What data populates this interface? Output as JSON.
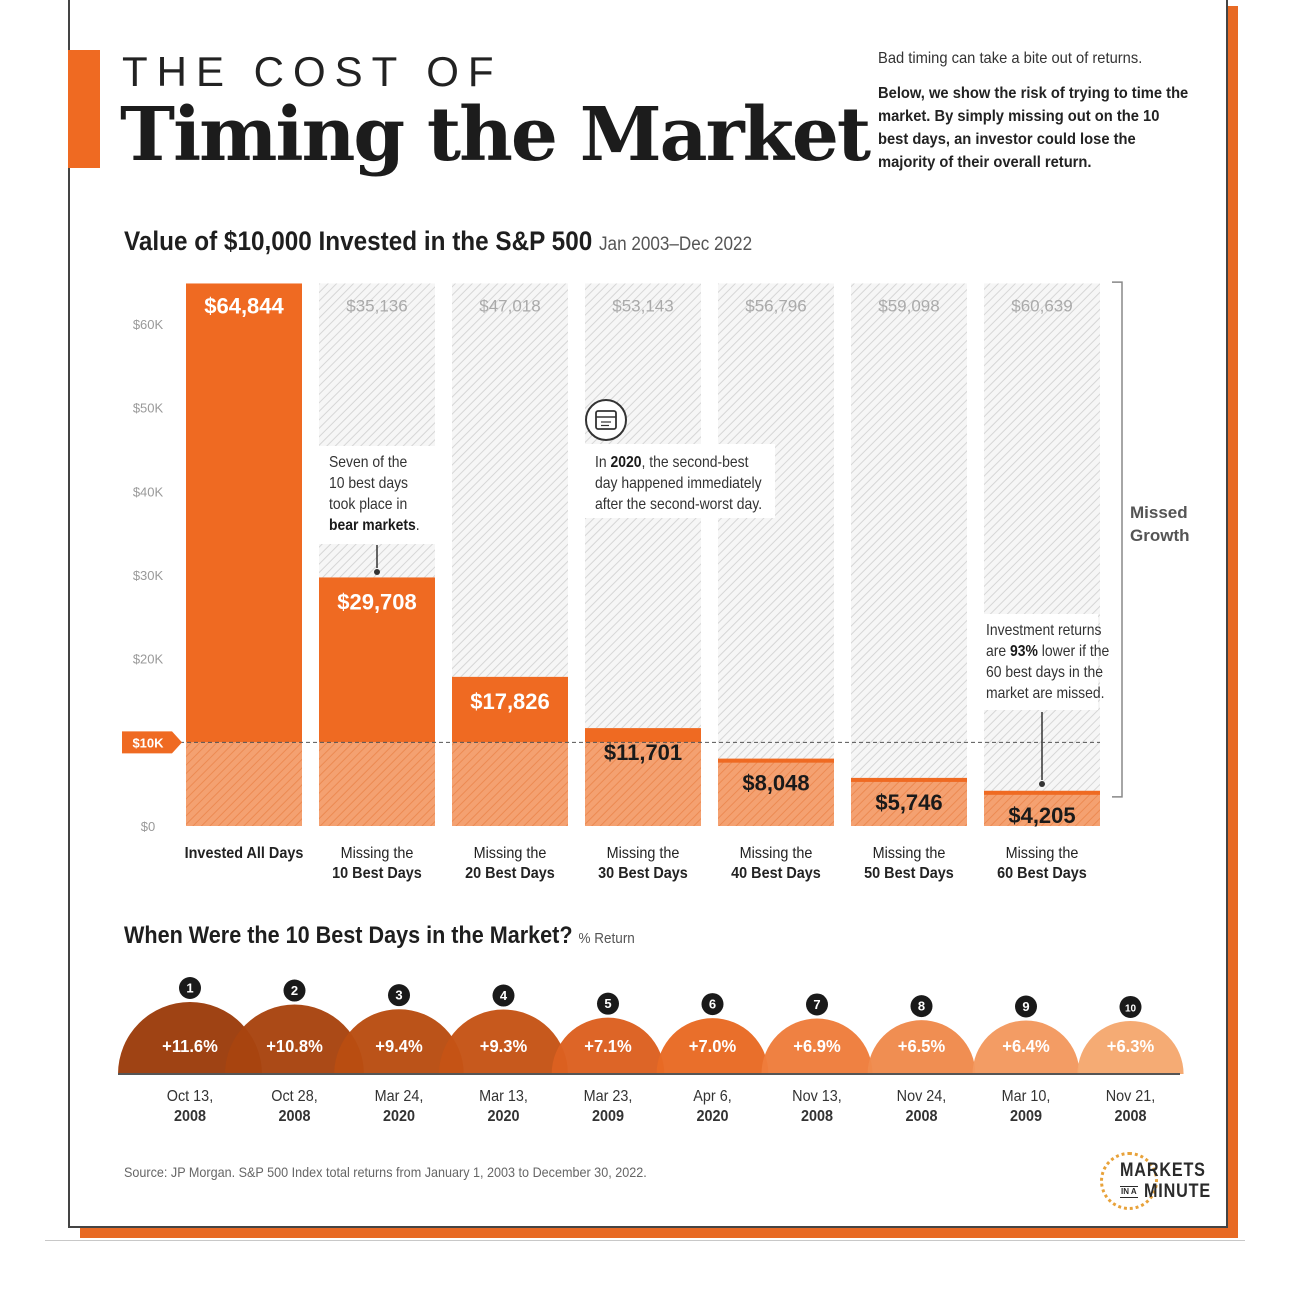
{
  "header": {
    "title_line1": "THE COST OF",
    "title_line2": "Timing the Market",
    "intro_line1": "Bad timing can take a bite out of returns.",
    "intro_line2": "Below, we show the risk of trying to time the market. By simply missing out on the 10 best days, an investor could lose the majority of their overall return."
  },
  "colors": {
    "orange": "#ef6a22",
    "light_orange": "#f4a171",
    "dark_brown": "#9c3d0c",
    "grid_text": "#888888"
  },
  "chart_data": [
    {
      "type": "bar",
      "title": "Value of $10,000 Invested in the S&P 500",
      "subtitle": "Jan 2003–Dec 2022",
      "ylim": [
        0,
        65000
      ],
      "yticks": [
        {
          "value": 0,
          "label": "$0"
        },
        {
          "value": 20000,
          "label": "$20K"
        },
        {
          "value": 30000,
          "label": "$30K"
        },
        {
          "value": 40000,
          "label": "$40K"
        },
        {
          "value": 50000,
          "label": "$50K"
        },
        {
          "value": 60000,
          "label": "$60K"
        }
      ],
      "baseline": {
        "value": 10000,
        "label": "$10K"
      },
      "categories": [
        [
          "Invested All Days"
        ],
        [
          "Missing the",
          "10 Best Days"
        ],
        [
          "Missing the",
          "20 Best Days"
        ],
        [
          "Missing the",
          "30 Best Days"
        ],
        [
          "Missing the",
          "40 Best Days"
        ],
        [
          "Missing the",
          "50 Best Days"
        ],
        [
          "Missing the",
          "60 Best Days"
        ]
      ],
      "values": [
        64844,
        29708,
        17826,
        11701,
        8048,
        5746,
        4205
      ],
      "value_labels": [
        "$64,844",
        "$29,708",
        "$17,826",
        "$11,701",
        "$8,048",
        "$5,746",
        "$4,205"
      ],
      "missed": [
        null,
        35136,
        47018,
        53143,
        56796,
        59098,
        60639
      ],
      "missed_labels": [
        "",
        "$35,136",
        "$47,018",
        "$53,143",
        "$56,796",
        "$59,098",
        "$60,639"
      ],
      "bracket_label": [
        "Missed",
        "Growth"
      ],
      "annotations": [
        {
          "segments": [
            [
              [
                "Seven of the",
                false
              ]
            ],
            [
              [
                "10 best days",
                false
              ]
            ],
            [
              [
                "took place in",
                false
              ]
            ],
            [
              [
                "bear markets",
                true
              ],
              [
                ".",
                false
              ]
            ]
          ]
        },
        {
          "segments": [
            [
              [
                "In ",
                false
              ],
              [
                "2020",
                true
              ],
              [
                ", the second-best",
                false
              ]
            ],
            [
              [
                "day happened immediately",
                false
              ]
            ],
            [
              [
                "after the second-worst day.",
                false
              ]
            ]
          ]
        },
        {
          "segments": [
            [
              [
                "Investment returns",
                false
              ]
            ],
            [
              [
                "are ",
                false
              ],
              [
                "93%",
                true
              ],
              [
                " lower if the",
                false
              ]
            ],
            [
              [
                "60 best days in the",
                false
              ]
            ],
            [
              [
                "market are missed.",
                false
              ]
            ]
          ]
        }
      ]
    },
    {
      "type": "bar",
      "title": "When Were the 10 Best Days in the Market?",
      "subtitle": "% Return",
      "ranks": [
        "1",
        "2",
        "3",
        "4",
        "5",
        "6",
        "7",
        "8",
        "9",
        "10"
      ],
      "values": [
        11.6,
        10.8,
        9.4,
        9.3,
        7.1,
        7.0,
        6.9,
        6.5,
        6.4,
        6.3
      ],
      "value_labels": [
        "+11.6%",
        "+10.8%",
        "+9.4%",
        "+9.3%",
        "+7.1%",
        "+7.0%",
        "+6.9%",
        "+6.5%",
        "+6.4%",
        "+6.3%"
      ],
      "dates": [
        [
          "Oct 13,",
          "2008"
        ],
        [
          "Oct 28,",
          "2008"
        ],
        [
          "Mar 24,",
          "2020"
        ],
        [
          "Mar 13,",
          "2020"
        ],
        [
          "Mar 23,",
          "2009"
        ],
        [
          "Apr 6,",
          "2020"
        ],
        [
          "Nov 13,",
          "2008"
        ],
        [
          "Nov 24,",
          "2008"
        ],
        [
          "Mar 10,",
          "2009"
        ],
        [
          "Nov 21,",
          "2008"
        ]
      ]
    }
  ],
  "footer": {
    "source": "Source: JP Morgan. S&P 500 Index total returns from January 1, 2003 to December 30, 2022.",
    "logo_line1": "MARKETS",
    "logo_in": "IN A",
    "logo_line2": "MINUTE"
  }
}
